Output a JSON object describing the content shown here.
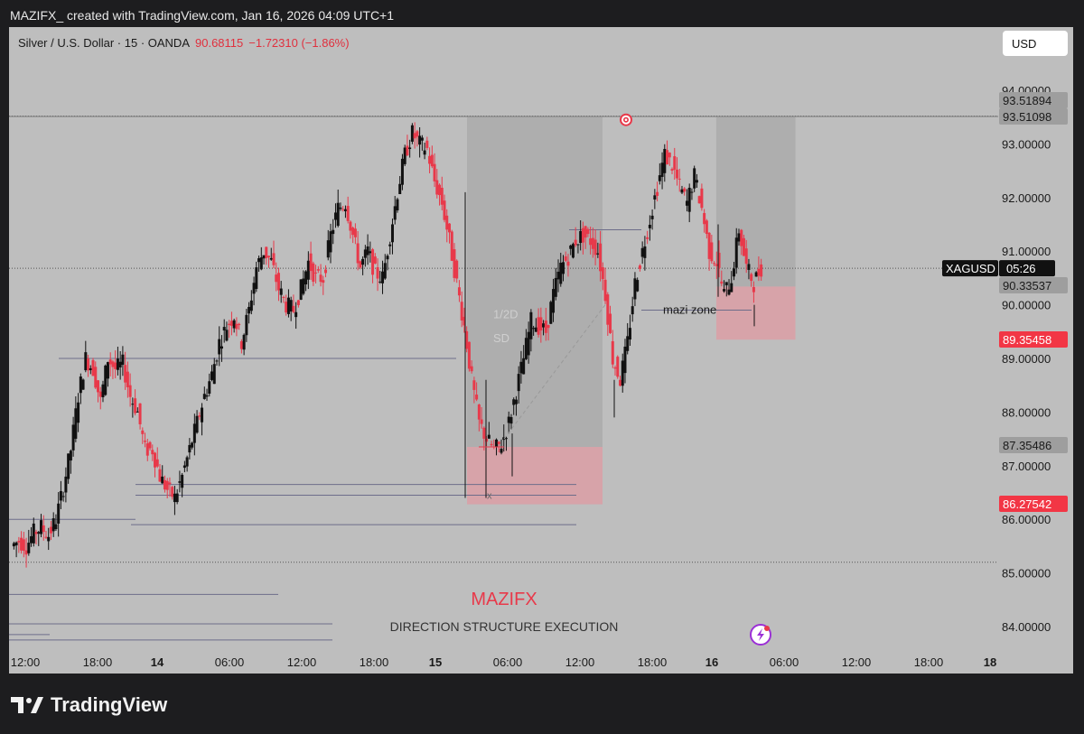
{
  "header": {
    "caption": "MAZIFX_ created with TradingView.com, Jan 16, 2026 04:09 UTC+1"
  },
  "legend": {
    "symbol": "Silver / U.S. Dollar · 15 · OANDA",
    "price": "90.68115",
    "change": "−1.72310 (−1.86%)"
  },
  "currency_button": "USD",
  "price_axis": {
    "ticks": [
      "94.00000",
      "93.00000",
      "92.00000",
      "91.00000",
      "90.00000",
      "89.00000",
      "88.00000",
      "87.00000",
      "86.00000",
      "85.00000",
      "84.00000"
    ],
    "tags": [
      {
        "label": "93.51894",
        "color": "#9e9e9e",
        "text_color": "#1a1a1a"
      },
      {
        "label": "93.51098",
        "color": "#9e9e9e",
        "text_color": "#1a1a1a"
      },
      {
        "label": "90.33537",
        "color": "#9e9e9e",
        "text_color": "#1a1a1a"
      },
      {
        "label": "89.35458",
        "color": "#f23645",
        "text_color": "#ffffff"
      },
      {
        "label": "87.35486",
        "color": "#9e9e9e",
        "text_color": "#1a1a1a"
      },
      {
        "label": "86.27542",
        "color": "#f23645",
        "text_color": "#ffffff"
      }
    ],
    "current": {
      "symbol": "XAGUSD",
      "countdown": "05:26"
    }
  },
  "time_axis": {
    "labels": [
      "12:00",
      "18:00",
      "14",
      "06:00",
      "12:00",
      "18:00",
      "15",
      "06:00",
      "12:00",
      "18:00",
      "16",
      "06:00",
      "12:00",
      "18:00",
      "18"
    ],
    "bold": [
      "14",
      "15",
      "16",
      "18"
    ]
  },
  "annotations": {
    "zone_label": "mazi zone",
    "small_label_1": "1/2D",
    "small_label_2": "SD",
    "x_mark": "x"
  },
  "watermark": {
    "title": "MAZIFX",
    "subtitle": "DIRECTION STRUCTURE  EXECUTION"
  },
  "brand": {
    "name": "TradingView"
  },
  "colors": {
    "up": "#111111",
    "down": "#e8394a",
    "chart_bg": "#bebebe",
    "zone_red": "#d9a0a6",
    "zone_gray": "#a8a8a8"
  },
  "icons": {
    "target": "target-icon",
    "flash": "flash-icon"
  },
  "chart_data": {
    "type": "candlestick",
    "symbol": "XAGUSD",
    "interval": "15",
    "ylim": [
      83.5,
      94.8
    ],
    "price_ticks": [
      84,
      85,
      86,
      87,
      88,
      89,
      90,
      91,
      92,
      93,
      94
    ],
    "current_price": 90.68115,
    "path": [
      85.6,
      85.5,
      85.75,
      85.85,
      85.7,
      86.0,
      86.6,
      87.3,
      88.3,
      89.0,
      88.8,
      88.2,
      89.0,
      88.8,
      88.9,
      88.3,
      88.0,
      87.3,
      87.3,
      86.8,
      86.55,
      86.4,
      86.8,
      87.3,
      87.8,
      88.3,
      88.7,
      89.3,
      89.6,
      89.8,
      89.3,
      89.9,
      90.7,
      91.0,
      90.8,
      90.3,
      90.0,
      89.9,
      90.3,
      90.8,
      90.5,
      90.5,
      91.3,
      91.8,
      91.9,
      91.3,
      90.7,
      91.0,
      90.6,
      90.5,
      91.3,
      92.1,
      92.8,
      93.2,
      93.0,
      92.9,
      92.3,
      91.9,
      91.2,
      90.4,
      89.6,
      88.6,
      87.8,
      87.5,
      87.3,
      87.4,
      87.8,
      88.4,
      89.0,
      89.7,
      89.6,
      89.5,
      90.2,
      90.7,
      90.9,
      91.2,
      91.3,
      91.2,
      91.0,
      90.2,
      89.0,
      88.6,
      89.3,
      90.4,
      91.0,
      91.6,
      92.2,
      92.8,
      92.6,
      92.2,
      91.9,
      92.4,
      91.8,
      91.0,
      90.8,
      90.2,
      90.5,
      91.4,
      90.7,
      90.4,
      90.7
    ],
    "levels": [
      {
        "price": 93.51894,
        "style": "dotted",
        "extends": "full"
      },
      {
        "price": 93.51098,
        "style": "solid",
        "extends": "full"
      },
      {
        "price": 90.68115,
        "style": "dotted",
        "extends": "full"
      },
      {
        "price": 85.2,
        "style": "dotted",
        "extends": "full"
      }
    ],
    "zones": [
      {
        "x_from": 0.463,
        "x_to": 0.6,
        "y_from": 93.5,
        "y_to": 87.35,
        "color": "gray"
      },
      {
        "x_from": 0.463,
        "x_to": 0.6,
        "y_from": 87.35,
        "y_to": 86.28,
        "color": "red"
      },
      {
        "x_from": 0.715,
        "x_to": 0.795,
        "y_from": 93.5,
        "y_to": 90.34,
        "color": "gray"
      },
      {
        "x_from": 0.715,
        "x_to": 0.795,
        "y_from": 90.34,
        "y_to": 89.35,
        "color": "red"
      }
    ]
  }
}
